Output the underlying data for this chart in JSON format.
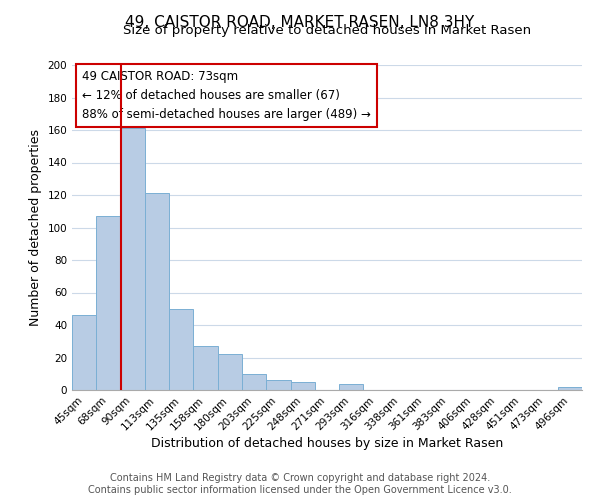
{
  "title": "49, CAISTOR ROAD, MARKET RASEN, LN8 3HY",
  "subtitle": "Size of property relative to detached houses in Market Rasen",
  "xlabel": "Distribution of detached houses by size in Market Rasen",
  "ylabel": "Number of detached properties",
  "bar_labels": [
    "45sqm",
    "68sqm",
    "90sqm",
    "113sqm",
    "135sqm",
    "158sqm",
    "180sqm",
    "203sqm",
    "225sqm",
    "248sqm",
    "271sqm",
    "293sqm",
    "316sqm",
    "338sqm",
    "361sqm",
    "383sqm",
    "406sqm",
    "428sqm",
    "451sqm",
    "473sqm",
    "496sqm"
  ],
  "bar_values": [
    46,
    107,
    161,
    121,
    50,
    27,
    22,
    10,
    6,
    5,
    0,
    4,
    0,
    0,
    0,
    0,
    0,
    0,
    0,
    0,
    2
  ],
  "bar_color": "#b8cce4",
  "bar_edge_color": "#7bafd4",
  "vline_x": 1.5,
  "vline_color": "#cc0000",
  "ylim": [
    0,
    200
  ],
  "yticks": [
    0,
    20,
    40,
    60,
    80,
    100,
    120,
    140,
    160,
    180,
    200
  ],
  "annotation_title": "49 CAISTOR ROAD: 73sqm",
  "annotation_line1": "← 12% of detached houses are smaller (67)",
  "annotation_line2": "88% of semi-detached houses are larger (489) →",
  "annotation_box_color": "#ffffff",
  "annotation_box_edge": "#cc0000",
  "footer_line1": "Contains HM Land Registry data © Crown copyright and database right 2024.",
  "footer_line2": "Contains public sector information licensed under the Open Government Licence v3.0.",
  "background_color": "#ffffff",
  "grid_color": "#ccd9e8",
  "title_fontsize": 11,
  "subtitle_fontsize": 9.5,
  "axis_label_fontsize": 9,
  "tick_fontsize": 7.5,
  "footer_fontsize": 7,
  "annotation_fontsize": 8.5
}
